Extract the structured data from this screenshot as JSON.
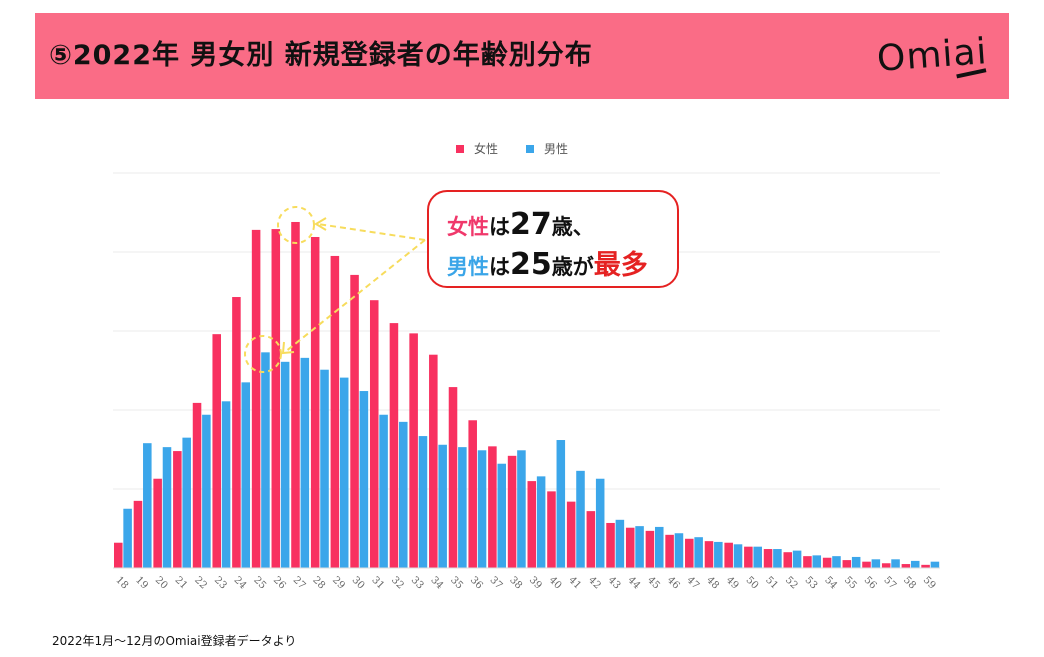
{
  "header": {
    "title": "⑤2022年 男女別 新規登録者の年齢別分布",
    "logo": "Omiai"
  },
  "legend": {
    "female": "女性",
    "male": "男性"
  },
  "callout": {
    "line1": {
      "gender": "女性",
      "particle": "は",
      "age": "27",
      "suffix": "歳、"
    },
    "line2": {
      "gender": "男性",
      "particle": "は",
      "age": "25",
      "suffix": "歳が",
      "emphasis": "最多"
    }
  },
  "footnote": "2022年1月〜12月のOmiai登録者データより",
  "colors": {
    "female": "#f83160",
    "male": "#3ba6ea",
    "header": "#fa6c86",
    "callout_border": "#e52222",
    "annotation": "#f7dc5c"
  },
  "chart_data": {
    "type": "bar",
    "title": "",
    "xlabel": "",
    "ylabel": "",
    "ylim": [
      0,
      5
    ],
    "grid": true,
    "legend_placement": "top",
    "categories": [
      "18",
      "19",
      "20",
      "21",
      "22",
      "23",
      "24",
      "25",
      "26",
      "27",
      "28",
      "29",
      "30",
      "31",
      "32",
      "33",
      "34",
      "35",
      "36",
      "37",
      "38",
      "39",
      "40",
      "41",
      "42",
      "43",
      "44",
      "45",
      "46",
      "47",
      "48",
      "49",
      "50",
      "51",
      "52",
      "53",
      "54",
      "55",
      "56",
      "57",
      "58",
      "59"
    ],
    "series": [
      {
        "name": "女性",
        "values": [
          0.32,
          0.85,
          1.13,
          1.48,
          2.09,
          2.96,
          3.43,
          4.28,
          4.29,
          4.38,
          4.19,
          3.95,
          3.71,
          3.39,
          3.1,
          2.97,
          2.7,
          2.29,
          1.87,
          1.54,
          1.42,
          1.1,
          0.97,
          0.84,
          0.72,
          0.57,
          0.51,
          0.47,
          0.42,
          0.37,
          0.34,
          0.32,
          0.27,
          0.24,
          0.2,
          0.15,
          0.13,
          0.1,
          0.08,
          0.06,
          0.05,
          0.04
        ]
      },
      {
        "name": "男性",
        "values": [
          0.75,
          1.58,
          1.53,
          1.65,
          1.94,
          2.11,
          2.35,
          2.73,
          2.61,
          2.66,
          2.51,
          2.41,
          2.24,
          1.94,
          1.85,
          1.67,
          1.56,
          1.53,
          1.49,
          1.32,
          1.49,
          1.16,
          1.62,
          1.23,
          1.13,
          0.61,
          0.53,
          0.52,
          0.44,
          0.39,
          0.33,
          0.3,
          0.27,
          0.24,
          0.22,
          0.16,
          0.15,
          0.14,
          0.11,
          0.11,
          0.09,
          0.08
        ]
      }
    ]
  }
}
